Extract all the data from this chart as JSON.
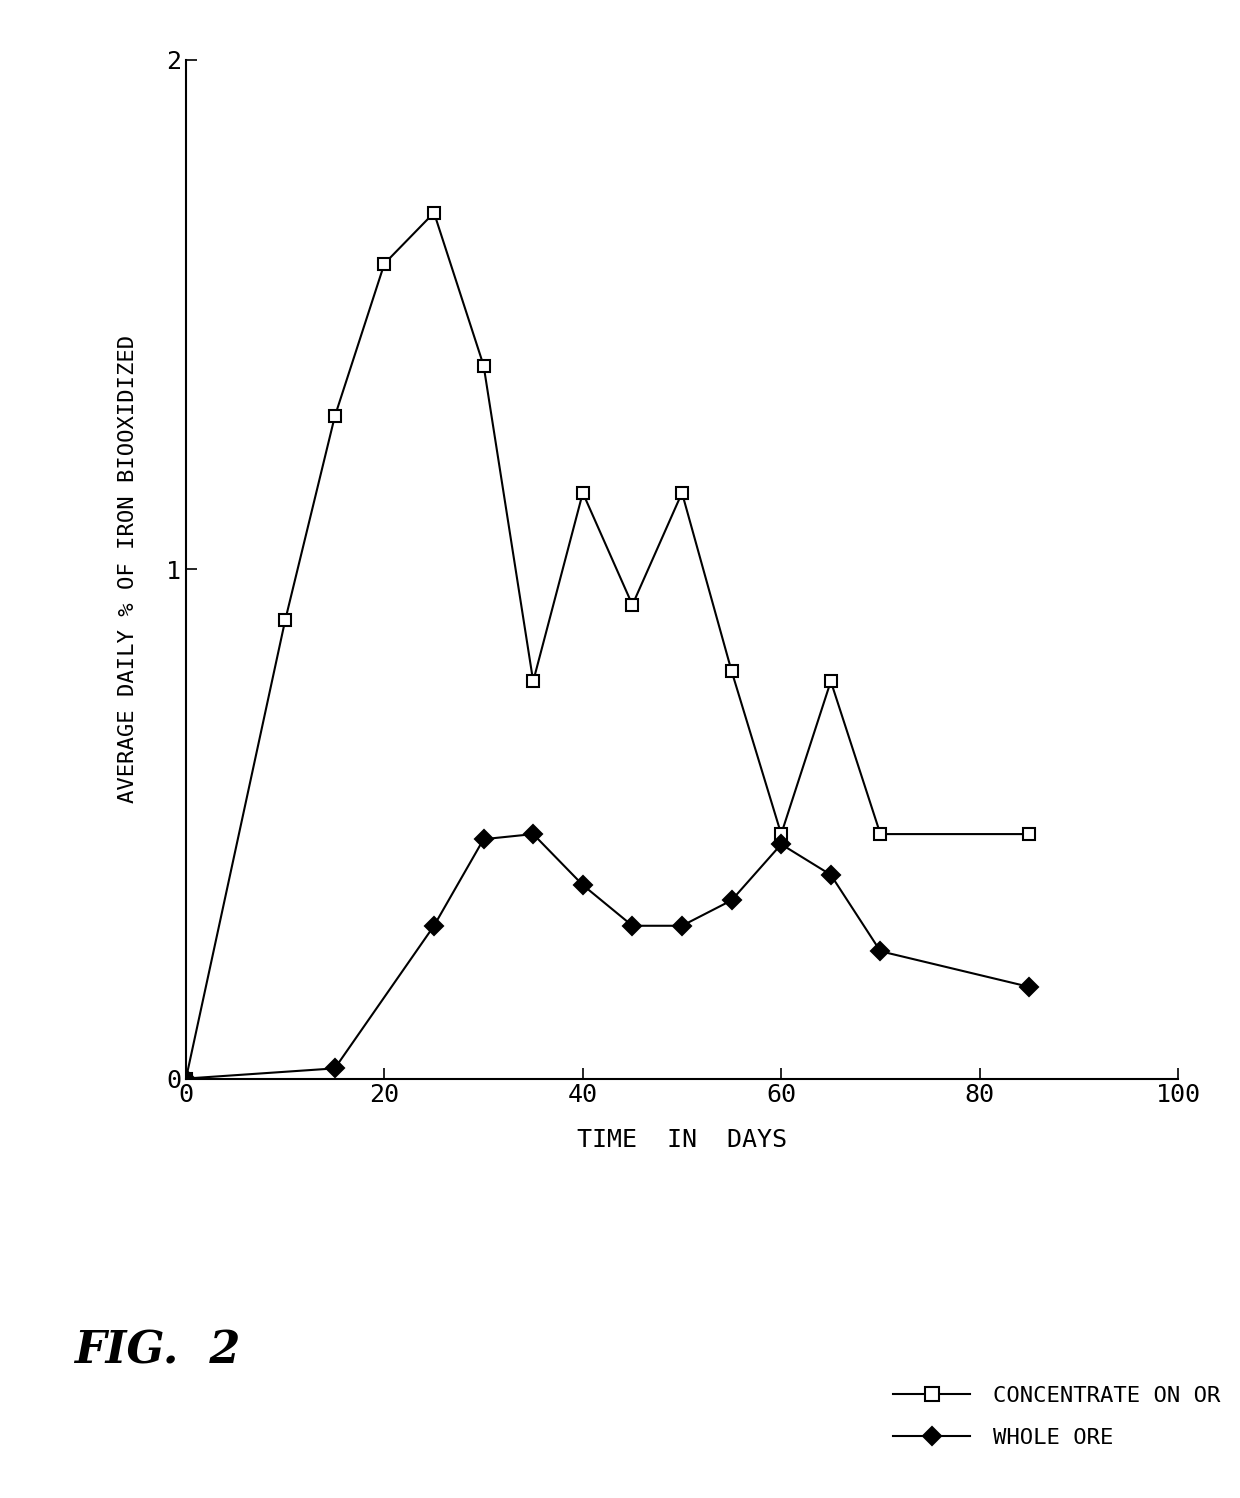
{
  "concentrate_x": [
    0,
    10,
    15,
    20,
    25,
    30,
    35,
    40,
    45,
    50,
    55,
    60,
    65,
    70,
    85
  ],
  "concentrate_y": [
    0,
    0.9,
    1.3,
    1.6,
    1.7,
    1.4,
    0.78,
    1.15,
    0.93,
    1.15,
    0.8,
    0.48,
    0.78,
    0.48,
    0.48
  ],
  "whole_ore_x": [
    0,
    15,
    25,
    30,
    35,
    40,
    45,
    50,
    55,
    60,
    65,
    70,
    85
  ],
  "whole_ore_y": [
    0,
    0.02,
    0.3,
    0.47,
    0.48,
    0.38,
    0.3,
    0.3,
    0.35,
    0.46,
    0.4,
    0.25,
    0.18
  ],
  "xlim": [
    0,
    100
  ],
  "ylim": [
    0,
    2
  ],
  "xticks": [
    0,
    20,
    40,
    60,
    80,
    100
  ],
  "yticks": [
    0,
    1,
    2
  ],
  "xlabel": "TIME  IN  DAYS",
  "ylabel": "AVERAGE DAILY % OF IRON BIOOXIDIZED",
  "legend_concentrate": "CONCENTRATE ON OR",
  "legend_whole_ore": "WHOLE ORE",
  "fig_label": "FIG.  2",
  "background_color": "#ffffff",
  "line_color": "#000000"
}
